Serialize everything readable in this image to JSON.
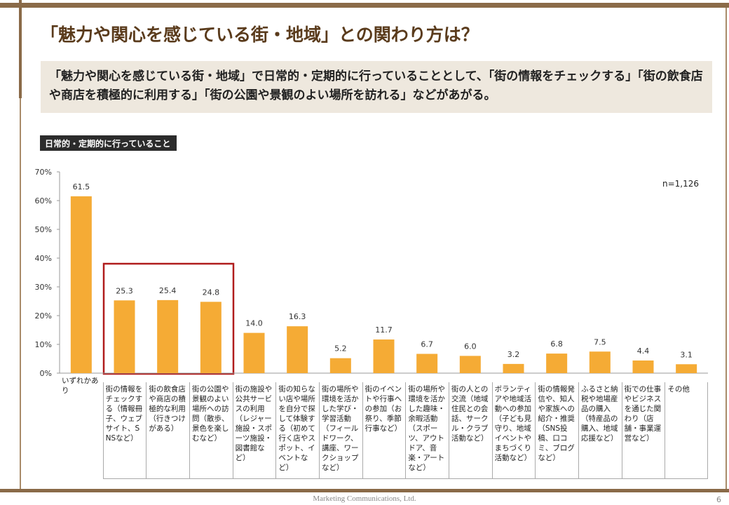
{
  "slide": {
    "title": "「魅力や関心を感じている街・地域」との関わり方は？",
    "subtitle": "「魅力や関心を感じている街・地域」で日常的・定期的に行っていることとして、「街の情報をチェックする」「街の飲食店や商店を積極的に利用する」「街の公園や景観のよい場所を訪れる」などがあがる。",
    "footer": "Marketing Communications, Ltd.",
    "page": "6"
  },
  "chart_data": {
    "type": "bar",
    "title": "日常的・定期的に行っていること",
    "note": "n=1,126",
    "categories": [
      "いずれかあり",
      "街の情報をチェックする（情報冊子、ウェブサイト、SNSなど）",
      "街の飲食店や商店の積極的な利用（行きつけがある）",
      "街の公園や景観のよい場所への訪問（散歩、景色を楽しむなど）",
      "街の施設や公共サービスの利用（レジャー施設・スポーツ施設・図書館など）",
      "街の知らない店や場所を自分で探して体験する（初めて行く店やスポット、イベントなど）",
      "街の場所や環境を活かした学び・学習活動（フィールドワーク、講座、ワークショップなど）",
      "街のイベントや行事への参加（お祭り、季節行事など）",
      "街の場所や環境を活かした趣味・余暇活動（スポーツ、アウトドア、音楽・アートなど）",
      "街の人との交流（地域住民との会話、サークル・クラブ活動など）",
      "ボランティアや地域活動への参加（子ども見守り、地域イベントやまちづくり活動など）",
      "街の情報発信や、知人や家族への紹介・推奨（SNS投稿、口コミ、ブログなど）",
      "ふるさと納税や地場産品の購入（特産品の購入、地域応援など）",
      "街での仕事やビジネスを通じた関わり（店舗・事業運営など）",
      "その他"
    ],
    "values": [
      61.5,
      25.3,
      25.4,
      24.8,
      14.0,
      16.3,
      5.2,
      11.7,
      6.7,
      6.0,
      3.2,
      6.8,
      7.5,
      4.4,
      3.1
    ],
    "value_labels": [
      "61.5",
      "25.3",
      "25.4",
      "24.8",
      "14.0",
      "16.3",
      "5.2",
      "11.7",
      "6.7",
      "6.0",
      "3.2",
      "6.8",
      "7.5",
      "4.4",
      "3.1"
    ],
    "color": "#f5ab35",
    "ylim": [
      0,
      70
    ],
    "yticks": [
      {
        "value": 0,
        "label": "0%"
      },
      {
        "value": 10,
        "label": "10%"
      },
      {
        "value": 20,
        "label": "20%"
      },
      {
        "value": 30,
        "label": "30%"
      },
      {
        "value": 40,
        "label": "40%"
      },
      {
        "value": 50,
        "label": "50%"
      },
      {
        "value": 60,
        "label": "60%"
      },
      {
        "value": 70,
        "label": "70%"
      }
    ],
    "grid": false
  }
}
